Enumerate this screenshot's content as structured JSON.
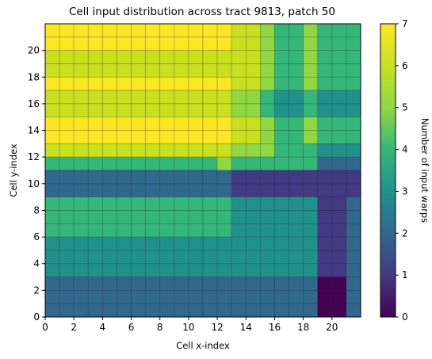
{
  "chart_data": {
    "type": "heatmap",
    "title": "Cell input distribution across tract 9813, patch 50",
    "xlabel": "Cell x-index",
    "ylabel": "Cell y-index",
    "colorbar_label": "Number of input warps",
    "colormap": "viridis",
    "vmin": 0,
    "vmax": 7,
    "grid_lines": true,
    "x_range": [
      0,
      22
    ],
    "y_range": [
      0,
      22
    ],
    "x_ticks": [
      0,
      2,
      4,
      6,
      8,
      10,
      12,
      14,
      16,
      18,
      20
    ],
    "y_ticks": [
      0,
      2,
      4,
      6,
      8,
      10,
      12,
      14,
      16,
      18,
      20
    ],
    "colorbar_ticks": [
      0,
      1,
      2,
      3,
      4,
      5,
      6,
      7
    ],
    "rows_top_to_bottom_y_index": [
      21,
      20,
      19,
      18,
      17,
      16,
      15,
      14,
      13,
      12,
      11,
      10,
      9,
      8,
      7,
      6,
      5,
      4,
      3,
      2,
      1,
      0
    ],
    "values": [
      [
        7,
        7,
        7,
        7,
        7,
        7,
        7,
        7,
        7,
        7,
        7,
        7,
        7,
        6,
        6,
        5,
        4,
        4,
        5,
        4,
        4,
        4
      ],
      [
        7,
        7,
        7,
        7,
        7,
        7,
        7,
        7,
        7,
        7,
        7,
        7,
        7,
        6,
        6,
        5,
        4,
        4,
        5,
        4,
        4,
        4
      ],
      [
        6,
        6,
        6,
        6,
        6,
        6,
        6,
        6,
        6,
        6,
        6,
        6,
        6,
        6,
        6,
        5,
        4,
        4,
        5,
        4,
        4,
        4
      ],
      [
        6,
        6,
        6,
        6,
        6,
        6,
        6,
        6,
        6,
        6,
        6,
        6,
        6,
        6,
        6,
        5,
        4,
        4,
        5,
        4,
        4,
        4
      ],
      [
        7,
        7,
        7,
        7,
        7,
        7,
        7,
        7,
        7,
        7,
        7,
        7,
        7,
        6,
        6,
        5,
        4,
        4,
        5,
        4,
        4,
        4
      ],
      [
        6,
        6,
        6,
        6,
        6,
        6,
        6,
        6,
        6,
        6,
        6,
        6,
        6,
        5,
        5,
        4,
        3,
        3,
        4,
        3,
        3,
        3
      ],
      [
        6,
        6,
        6,
        6,
        6,
        6,
        6,
        6,
        6,
        6,
        6,
        6,
        6,
        5,
        5,
        4,
        3,
        3,
        4,
        3,
        3,
        3
      ],
      [
        7,
        7,
        7,
        7,
        7,
        7,
        7,
        7,
        7,
        7,
        7,
        7,
        7,
        6,
        6,
        5,
        4,
        4,
        5,
        4,
        4,
        4
      ],
      [
        7,
        7,
        7,
        7,
        7,
        7,
        7,
        7,
        7,
        7,
        7,
        7,
        7,
        6,
        6,
        5,
        4,
        4,
        5,
        4,
        4,
        4
      ],
      [
        6,
        6,
        6,
        6,
        6,
        6,
        6,
        6,
        6,
        6,
        6,
        6,
        6,
        5,
        5,
        5,
        4,
        4,
        4,
        3,
        3,
        3
      ],
      [
        4,
        4,
        4,
        4,
        4,
        4,
        4,
        4,
        4,
        4,
        4,
        4,
        5,
        4,
        4,
        4,
        4,
        4,
        4,
        2,
        2,
        2
      ],
      [
        2,
        2,
        2,
        2,
        2,
        2,
        2,
        2,
        2,
        2,
        2,
        2,
        2,
        1,
        1,
        1,
        1,
        1,
        1,
        1,
        1,
        1
      ],
      [
        2,
        2,
        2,
        2,
        2,
        2,
        2,
        2,
        2,
        2,
        2,
        2,
        2,
        1,
        1,
        1,
        1,
        1,
        1,
        1,
        1,
        1
      ],
      [
        4,
        4,
        4,
        4,
        4,
        4,
        4,
        4,
        4,
        4,
        4,
        4,
        4,
        3,
        3,
        3,
        3,
        3,
        3,
        1,
        1,
        2
      ],
      [
        4,
        4,
        4,
        4,
        4,
        4,
        4,
        4,
        4,
        4,
        4,
        4,
        4,
        3,
        3,
        3,
        3,
        3,
        3,
        1,
        1,
        2
      ],
      [
        4,
        4,
        4,
        4,
        4,
        4,
        4,
        4,
        4,
        4,
        4,
        4,
        4,
        3,
        3,
        3,
        3,
        3,
        3,
        1,
        1,
        2
      ],
      [
        3,
        3,
        3,
        3,
        3,
        3,
        3,
        3,
        3,
        3,
        3,
        3,
        3,
        3,
        3,
        3,
        3,
        3,
        3,
        1,
        1,
        2
      ],
      [
        3,
        3,
        3,
        3,
        3,
        3,
        3,
        3,
        3,
        3,
        3,
        3,
        3,
        3,
        3,
        3,
        3,
        3,
        3,
        1,
        1,
        2
      ],
      [
        3,
        3,
        3,
        3,
        3,
        3,
        3,
        3,
        3,
        3,
        3,
        3,
        3,
        3,
        3,
        3,
        3,
        3,
        3,
        1,
        1,
        2
      ],
      [
        2,
        2,
        2,
        2,
        2,
        2,
        2,
        2,
        2,
        2,
        2,
        2,
        2,
        2,
        2,
        2,
        2,
        2,
        2,
        0,
        0,
        2
      ],
      [
        2,
        2,
        2,
        2,
        2,
        2,
        2,
        2,
        2,
        2,
        2,
        2,
        2,
        2,
        2,
        2,
        2,
        2,
        2,
        0,
        0,
        2
      ],
      [
        2,
        2,
        2,
        2,
        2,
        2,
        2,
        2,
        2,
        2,
        2,
        2,
        2,
        2,
        2,
        2,
        2,
        2,
        2,
        0,
        0,
        2
      ]
    ]
  }
}
